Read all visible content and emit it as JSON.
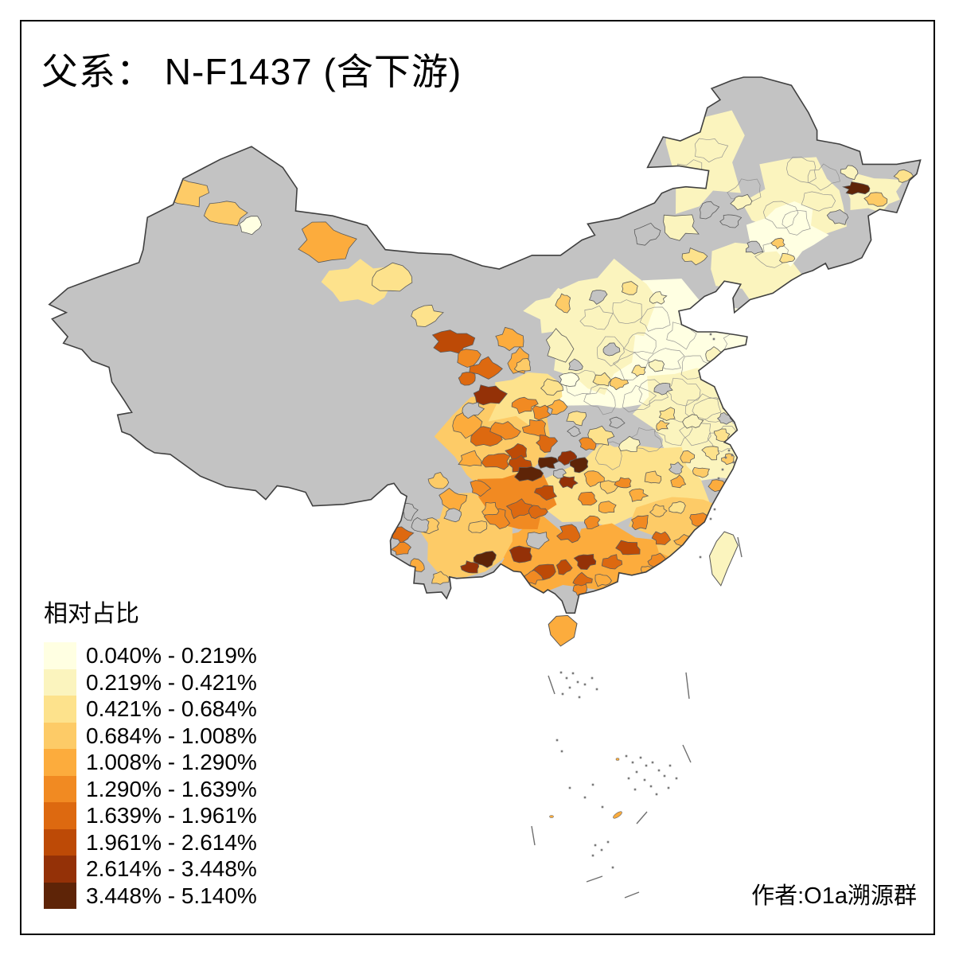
{
  "title": "父系： N-F1437 (含下游)",
  "attribution": "作者:O1a溯源群",
  "legend": {
    "title": "相对占比",
    "no_data_color": "#C3C3C3",
    "classes": [
      {
        "label": "0.040% - 0.219%",
        "color": "#FFFFE2"
      },
      {
        "label": "0.219% - 0.421%",
        "color": "#FBF4BE"
      },
      {
        "label": "0.421% - 0.684%",
        "color": "#FDE28C"
      },
      {
        "label": "0.684% - 1.008%",
        "color": "#FDCB67"
      },
      {
        "label": "1.008% - 1.290%",
        "color": "#FCAC3D"
      },
      {
        "label": "1.290% - 1.639%",
        "color": "#F18A22"
      },
      {
        "label": "1.639% - 1.961%",
        "color": "#DD6910"
      },
      {
        "label": "1.961% - 2.614%",
        "color": "#BD4A06"
      },
      {
        "label": "2.614% - 3.448%",
        "color": "#943107"
      },
      {
        "label": "3.448% - 5.140%",
        "color": "#5E2407"
      }
    ]
  },
  "chart_data": {
    "type": "choropleth-map",
    "title": "父系： N-F1437 (含下游)",
    "legend_title": "相对占比",
    "class_breaks_percent": [
      0.04,
      0.219,
      0.421,
      0.684,
      1.008,
      1.29,
      1.639,
      1.961,
      2.614,
      3.448,
      5.14
    ],
    "class_colors": [
      "#FFFFE2",
      "#FBF4BE",
      "#FDE28C",
      "#FDCB67",
      "#FCAC3D",
      "#F18A22",
      "#DD6910",
      "#BD4A06",
      "#943107",
      "#5E2407"
    ],
    "no_data_color": "#C3C3C3",
    "region_reading": [
      {
        "area": "Guizhou / Chongqing / W-Hunan cluster (Zunyi, Qianjiang, Zhangjiajie)",
        "class_label": "3.448% - 5.140%"
      },
      {
        "area": "SE Yunnan / W Guangxi (Wenshan, Baise)",
        "class_label": "2.614% - 5.140%"
      },
      {
        "area": "E Guangxi / W Guangdong and N Guangdong",
        "class_label": "1.961% - 3.448%"
      },
      {
        "area": "E Heilongjiang spot (Hegang / Jiamusi)",
        "class_label": "3.448% - 5.140%"
      },
      {
        "area": "Central Gansu (Wuwei / Lanzhou) and S Gansu (Longnan)",
        "class_label": "1.961% - 3.448%"
      },
      {
        "area": "Sichuan Basin and Guangdong coast",
        "class_label": "1.290% - 2.614%"
      },
      {
        "area": "Hainan island",
        "class_label": "1.008% - 1.290%"
      },
      {
        "area": "North China plain, lower Yangtze, Northeast plains, Taiwan",
        "class_label": "0.040% - 0.421%"
      },
      {
        "area": "Tibet, W Qinghai, most of Xinjiang, W Inner Mongolia",
        "class_label": "no data (gray)"
      }
    ]
  }
}
